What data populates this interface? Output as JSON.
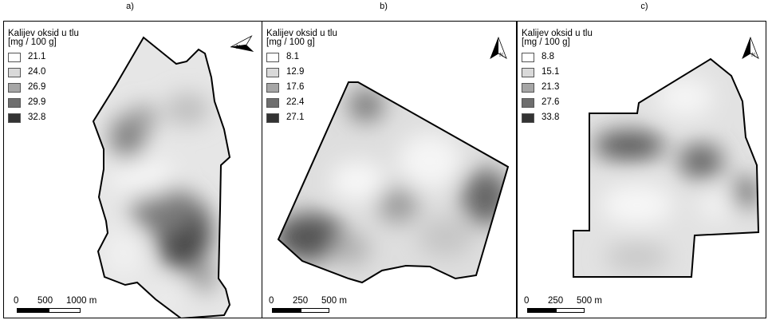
{
  "panels": [
    {
      "label": "a)",
      "legend_title": "Kalijev oksid u tlu",
      "legend_unit": "[mg / 100 g]",
      "classes": [
        {
          "value": "21.1",
          "color": "#ffffff"
        },
        {
          "value": "24.0",
          "color": "#d9d9d9"
        },
        {
          "value": "26.9",
          "color": "#a6a6a6"
        },
        {
          "value": "29.9",
          "color": "#6e6e6e"
        },
        {
          "value": "32.8",
          "color": "#333333"
        }
      ],
      "scale_labels": [
        "0",
        "500",
        "1000 m"
      ],
      "north_icon": "north-arrow-icon",
      "north_letter": "N"
    },
    {
      "label": "b)",
      "legend_title": "Kalijev oksid u tlu",
      "legend_unit": "[mg / 100 g]",
      "classes": [
        {
          "value": "8.1",
          "color": "#ffffff"
        },
        {
          "value": "12.9",
          "color": "#d9d9d9"
        },
        {
          "value": "17.6",
          "color": "#a6a6a6"
        },
        {
          "value": "22.4",
          "color": "#6e6e6e"
        },
        {
          "value": "27.1",
          "color": "#333333"
        }
      ],
      "scale_labels": [
        "0",
        "250",
        "500 m"
      ],
      "north_icon": "north-arrow-icon",
      "north_letter": "N"
    },
    {
      "label": "c)",
      "legend_title": "Kalijev oksid u tlu",
      "legend_unit": "[mg / 100 g]",
      "classes": [
        {
          "value": "8.8",
          "color": "#ffffff"
        },
        {
          "value": "15.1",
          "color": "#d9d9d9"
        },
        {
          "value": "21.3",
          "color": "#a6a6a6"
        },
        {
          "value": "27.6",
          "color": "#6e6e6e"
        },
        {
          "value": "33.8",
          "color": "#333333"
        }
      ],
      "scale_labels": [
        "0",
        "250",
        "500 m"
      ],
      "north_icon": "north-arrow-icon",
      "north_letter": "N"
    }
  ]
}
